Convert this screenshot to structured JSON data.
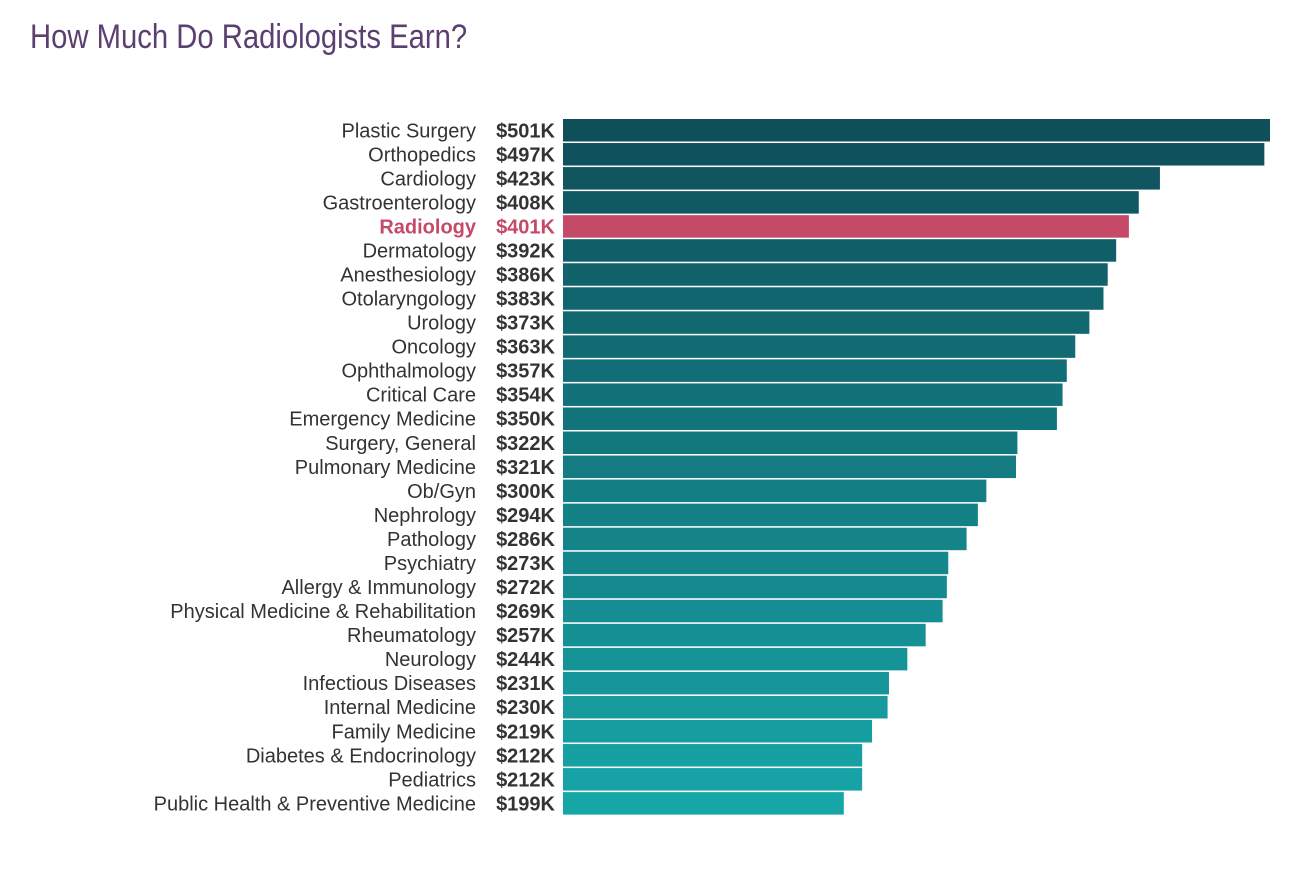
{
  "title": "How Much Do Radiologists Earn?",
  "colors": {
    "title": "#5b3f70",
    "bar_start": "#0f4f5a",
    "bar_end": "#17a6a8",
    "highlight": "#c44a68",
    "text": "#333333"
  },
  "chart_data": {
    "type": "bar",
    "orientation": "horizontal",
    "title": "How Much Do Radiologists Earn?",
    "highlight_category": "Radiology",
    "unit_prefix": "$",
    "unit_suffix": "K",
    "grid": false,
    "legend": "none",
    "categories": [
      "Plastic Surgery",
      "Orthopedics",
      "Cardiology",
      "Gastroenterology",
      "Radiology",
      "Dermatology",
      "Anesthesiology",
      "Otolaryngology",
      "Urology",
      "Oncology",
      "Ophthalmology",
      "Critical Care",
      "Emergency Medicine",
      "Surgery, General",
      "Pulmonary Medicine",
      "Ob/Gyn",
      "Nephrology",
      "Pathology",
      "Psychiatry",
      "Allergy & Immunology",
      "Physical Medicine & Rehabilitation",
      "Rheumatology",
      "Neurology",
      "Infectious Diseases",
      "Internal Medicine",
      "Family Medicine",
      "Diabetes & Endocrinology",
      "Pediatrics",
      "Public Health & Preventive Medicine"
    ],
    "values": [
      501,
      497,
      423,
      408,
      401,
      392,
      386,
      383,
      373,
      363,
      357,
      354,
      350,
      322,
      321,
      300,
      294,
      286,
      273,
      272,
      269,
      257,
      244,
      231,
      230,
      219,
      212,
      212,
      199
    ],
    "value_labels": [
      "$501K",
      "$497K",
      "$423K",
      "$408K",
      "$401K",
      "$392K",
      "$386K",
      "$383K",
      "$373K",
      "$363K",
      "$357K",
      "$354K",
      "$350K",
      "$322K",
      "$321K",
      "$300K",
      "$294K",
      "$286K",
      "$273K",
      "$272K",
      "$269K",
      "$257K",
      "$244K",
      "$231K",
      "$230K",
      "$219K",
      "$212K",
      "$212K",
      "$199K"
    ]
  }
}
